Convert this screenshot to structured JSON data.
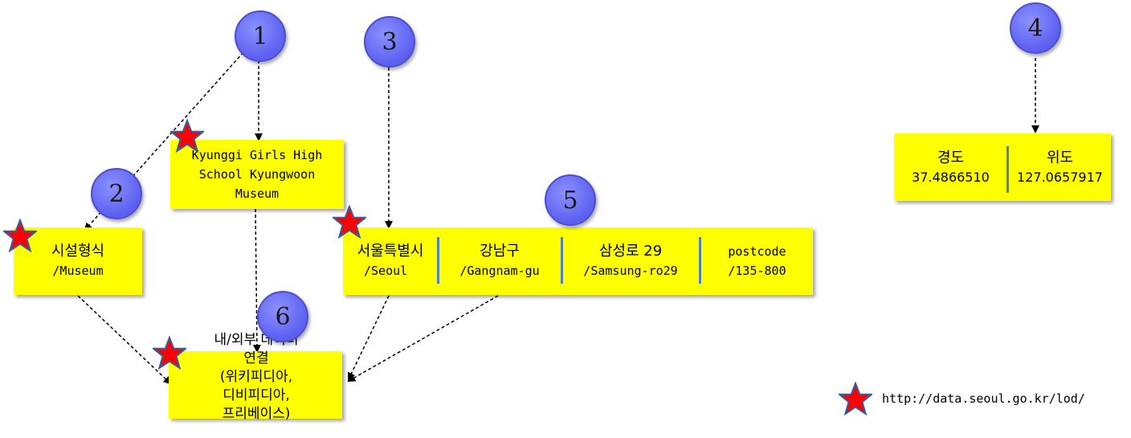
{
  "badges": [
    "1",
    "2",
    "3",
    "4",
    "5",
    "6"
  ],
  "nodes": {
    "museum": {
      "line1": "Kyunggi Girls High",
      "line2": "School Kyungwoon",
      "line3": "Museum"
    },
    "facility": {
      "ko": "시설형식",
      "en": "/Museum"
    },
    "address": [
      {
        "ko": "서울특별시",
        "en": "/Seoul"
      },
      {
        "ko": "강남구",
        "en": "/Gangnam-gu"
      },
      {
        "ko": "삼성로 29",
        "en": "/Samsung-ro29"
      },
      {
        "ko": "postcode",
        "en": "/135-800"
      }
    ],
    "coords": [
      {
        "label": "경도",
        "value": "37.4866510"
      },
      {
        "label": "위도",
        "value": "127.0657917"
      }
    ],
    "linked": [
      "내/외부 데이터",
      "연결",
      "(위키피디아,",
      "디비피디아,",
      "프리베이스)"
    ]
  },
  "legend": {
    "url": "http://data.seoul.go.kr/lod/"
  },
  "colors": {
    "box": "#ffff00",
    "badge": "#6a6cf5",
    "star": "#ff0000",
    "separator": "#4f81bd"
  }
}
